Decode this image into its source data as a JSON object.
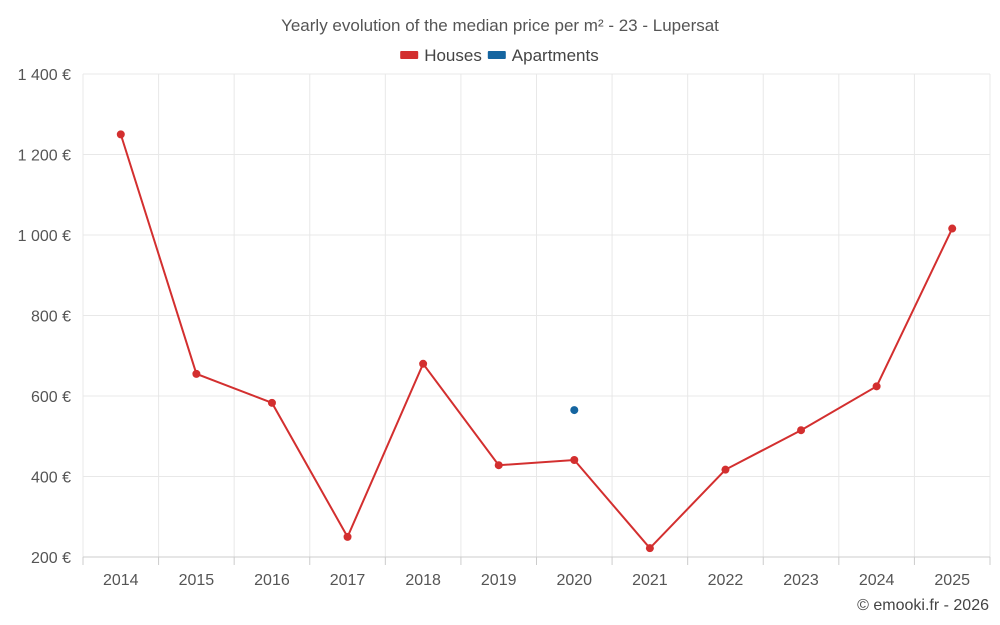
{
  "chart_data": {
    "type": "line",
    "title": "Yearly evolution of the median price per m² - 23 - Lupersat",
    "xlabel": "",
    "ylabel": "",
    "categories": [
      "2014",
      "2015",
      "2016",
      "2017",
      "2018",
      "2019",
      "2020",
      "2021",
      "2022",
      "2023",
      "2024",
      "2025"
    ],
    "series": [
      {
        "name": "Houses",
        "color": "#d32f2f",
        "values": [
          1250,
          655,
          583,
          250,
          680,
          428,
          441,
          222,
          417,
          515,
          624,
          1016
        ]
      },
      {
        "name": "Apartments",
        "color": "#1565a0",
        "values": [
          null,
          null,
          null,
          null,
          null,
          null,
          565,
          null,
          null,
          null,
          null,
          null
        ]
      }
    ],
    "ylim": [
      200,
      1400
    ],
    "yticks": [
      200,
      400,
      600,
      800,
      1000,
      1200,
      1400
    ],
    "ytick_labels": [
      "200 €",
      "400 €",
      "600 €",
      "800 €",
      "1 000 €",
      "1 200 €",
      "1 400 €"
    ],
    "grid": true,
    "legend_position": "top-center"
  },
  "credit": "© emooki.fr - 2026"
}
